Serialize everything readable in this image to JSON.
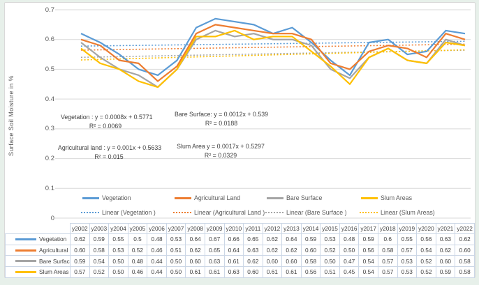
{
  "colors": {
    "background": "#E7F0EA",
    "panel": "#FFFFFF",
    "grid": "#D9D9D9",
    "axis_text": "#595959",
    "table_border": "#CCD7E6",
    "table_text": "#404040",
    "vegetation": "#5B9BD5",
    "agricultural_land": "#ED7D31",
    "bare_surface": "#A5A5A5",
    "slum_areas": "#FFC000"
  },
  "chart": {
    "y_axis_title": "Surface Soil Moisture in %",
    "y_ticks": [
      "0.7",
      "0.6",
      "0.5",
      "0.4",
      "0.3",
      "0.2",
      "0.1",
      "0"
    ],
    "annotations": [
      {
        "name": "vegetation-equation",
        "line1": "Vegetation : y = 0.0008x + 0.5771",
        "line2": "R² = 0.0069"
      },
      {
        "name": "bare-surface-equation",
        "line1": "Bare Surface: y = 0.0012x + 0.539",
        "line2": "R² = 0.0188"
      },
      {
        "name": "agricultural-land-equation",
        "line1": "Agricultural land : y = 0.001x + 0.5633",
        "line2": "R² = 0.015"
      },
      {
        "name": "slum-area-equation",
        "line1": "Slum Area y = 0.0017x + 0.5297",
        "line2": "R² = 0.0329"
      }
    ]
  },
  "chart_data": {
    "type": "line",
    "title": "",
    "xlabel": "",
    "ylabel": "Surface Soil Moisture in %",
    "ylim": [
      0,
      0.7
    ],
    "ytick_step": 0.1,
    "grid": true,
    "legend_position": "bottom",
    "categories": [
      "y2002",
      "y2003",
      "y2004",
      "y2005",
      "y2006",
      "y2007",
      "y2008",
      "y2009",
      "y2010",
      "y2011",
      "y2012",
      "y2013",
      "y2014",
      "y2015",
      "y2016",
      "y2017",
      "y2018",
      "y2019",
      "y2020",
      "y2021",
      "y2022"
    ],
    "series": [
      {
        "name": "Vegetation",
        "color": "#5B9BD5",
        "values": [
          0.62,
          0.59,
          0.55,
          0.5,
          0.48,
          0.53,
          0.64,
          0.67,
          0.66,
          0.65,
          0.62,
          0.64,
          0.59,
          0.53,
          0.48,
          0.59,
          0.6,
          0.55,
          0.56,
          0.63,
          0.62
        ]
      },
      {
        "name": "Agricultural Land",
        "color": "#ED7D31",
        "values": [
          0.6,
          0.58,
          0.53,
          0.52,
          0.46,
          0.51,
          0.62,
          0.65,
          0.64,
          0.63,
          0.62,
          0.62,
          0.6,
          0.52,
          0.5,
          0.56,
          0.58,
          0.57,
          0.54,
          0.62,
          0.6
        ]
      },
      {
        "name": "Bare Surface",
        "color": "#A5A5A5",
        "values": [
          0.59,
          0.54,
          0.5,
          0.48,
          0.44,
          0.5,
          0.6,
          0.63,
          0.61,
          0.62,
          0.6,
          0.6,
          0.58,
          0.5,
          0.47,
          0.54,
          0.57,
          0.53,
          0.52,
          0.6,
          0.58
        ]
      },
      {
        "name": "Slum Areas",
        "color": "#FFC000",
        "values": [
          0.57,
          0.52,
          0.5,
          0.46,
          0.44,
          0.5,
          0.61,
          0.61,
          0.63,
          0.6,
          0.61,
          0.61,
          0.56,
          0.51,
          0.45,
          0.54,
          0.57,
          0.53,
          0.52,
          0.59,
          0.58
        ]
      }
    ],
    "trendlines": [
      {
        "label": "Linear (Vegetation )",
        "color": "#5B9BD5",
        "slope": 0.0008,
        "intercept": 0.5771,
        "r2": 0.0069
      },
      {
        "label": "Linear (Agricultural Land )",
        "color": "#ED7D31",
        "slope": 0.001,
        "intercept": 0.5633,
        "r2": 0.015
      },
      {
        "label": "Linear (Bare Surface )",
        "color": "#A5A5A5",
        "slope": 0.0012,
        "intercept": 0.539,
        "r2": 0.0188
      },
      {
        "label": "Linear (Slum Areas)",
        "color": "#FFC000",
        "slope": 0.0017,
        "intercept": 0.5297,
        "r2": 0.0329
      }
    ]
  },
  "table": {
    "corner_label": "",
    "rows": [
      {
        "label": "Vegetation",
        "values": [
          "0.62",
          "0.59",
          "0.55",
          "0.5",
          "0.48",
          "0.53",
          "0.64",
          "0.67",
          "0.66",
          "0.65",
          "0.62",
          "0.64",
          "0.59",
          "0.53",
          "0.48",
          "0.59",
          "0.6",
          "0.55",
          "0.56",
          "0.63",
          "0.62"
        ]
      },
      {
        "label": "Agricultural Land",
        "values": [
          "0.60",
          "0.58",
          "0.53",
          "0.52",
          "0.46",
          "0.51",
          "0.62",
          "0.65",
          "0.64",
          "0.63",
          "0.62",
          "0.62",
          "0.60",
          "0.52",
          "0.50",
          "0.56",
          "0.58",
          "0.57",
          "0.54",
          "0.62",
          "0.60"
        ]
      },
      {
        "label": "Bare Surface",
        "values": [
          "0.59",
          "0.54",
          "0.50",
          "0.48",
          "0.44",
          "0.50",
          "0.60",
          "0.63",
          "0.61",
          "0.62",
          "0.60",
          "0.60",
          "0.58",
          "0.50",
          "0.47",
          "0.54",
          "0.57",
          "0.53",
          "0.52",
          "0.60",
          "0.58"
        ]
      },
      {
        "label": "Slum Areas",
        "values": [
          "0.57",
          "0.52",
          "0.50",
          "0.46",
          "0.44",
          "0.50",
          "0.61",
          "0.61",
          "0.63",
          "0.60",
          "0.61",
          "0.61",
          "0.56",
          "0.51",
          "0.45",
          "0.54",
          "0.57",
          "0.53",
          "0.52",
          "0.59",
          "0.58"
        ]
      }
    ]
  }
}
